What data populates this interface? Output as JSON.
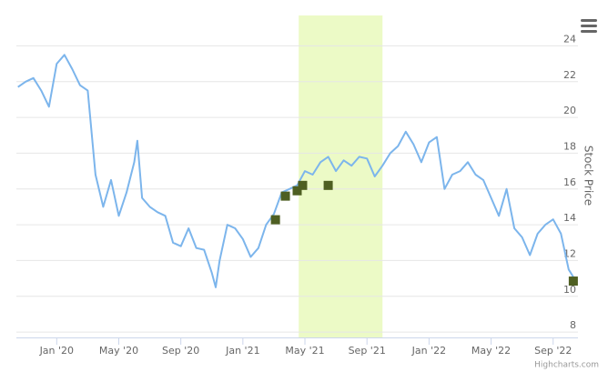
{
  "chart_data": {
    "type": "line",
    "y_axis_label": "Stock Price",
    "credit": "Highcharts.com",
    "xlim": [
      -2.6,
      33.6
    ],
    "xticks": [
      {
        "value": 0,
        "label": "Jan '20"
      },
      {
        "value": 4,
        "label": "May '20"
      },
      {
        "value": 8,
        "label": "Sep '20"
      },
      {
        "value": 12,
        "label": "Jan '21"
      },
      {
        "value": 16,
        "label": "May '21"
      },
      {
        "value": 20,
        "label": "Sep '21"
      },
      {
        "value": 24,
        "label": "Jan '22"
      },
      {
        "value": 28,
        "label": "May '22"
      },
      {
        "value": 32,
        "label": "Sep '22"
      }
    ],
    "ylim": [
      7.7,
      25.7
    ],
    "yticks": [
      8,
      10,
      12,
      14,
      16,
      18,
      20,
      22,
      24
    ],
    "grid": true,
    "band": [
      15.6,
      21.0
    ],
    "band_color": "#ecfac6",
    "series": [
      {
        "color": "#7cb5ec",
        "x": [
          -2.5,
          -2,
          -1.5,
          -1,
          -0.5,
          0,
          0.5,
          1,
          1.5,
          2,
          2.5,
          3,
          3.5,
          4,
          4.5,
          5,
          5.2,
          5.5,
          6,
          6.5,
          7,
          7.5,
          8,
          8.5,
          9,
          9.5,
          10,
          10.25,
          10.5,
          11,
          11.5,
          12,
          12.5,
          13,
          13.5,
          14,
          14.5,
          15,
          15.5,
          16,
          16.5,
          17,
          17.5,
          18,
          18.5,
          19,
          19.5,
          20,
          20.5,
          21,
          21.5,
          22,
          22.5,
          23,
          23.5,
          24,
          24.5,
          25,
          25.5,
          26,
          26.5,
          27,
          27.5,
          28,
          28.5,
          29,
          29.5,
          30,
          30.5,
          31,
          31.5,
          32,
          32.5,
          33,
          33.5
        ],
        "values": [
          21.7,
          22.0,
          22.2,
          21.5,
          20.6,
          23.0,
          23.5,
          22.7,
          21.8,
          21.5,
          16.8,
          15.0,
          16.5,
          14.5,
          15.8,
          17.5,
          18.7,
          15.5,
          15.0,
          14.7,
          14.5,
          13.0,
          12.8,
          13.8,
          12.7,
          12.6,
          11.3,
          10.5,
          12.0,
          14.0,
          13.8,
          13.2,
          12.2,
          12.7,
          14.0,
          14.6,
          15.8,
          16.0,
          16.2,
          17.0,
          16.8,
          17.5,
          17.8,
          17.0,
          17.6,
          17.3,
          17.8,
          17.7,
          16.7,
          17.3,
          18.0,
          18.4,
          19.2,
          18.5,
          17.5,
          18.6,
          18.9,
          16.0,
          16.8,
          17.0,
          17.5,
          16.8,
          16.5,
          15.5,
          14.5,
          16.0,
          13.8,
          13.3,
          12.3,
          13.5,
          14.0,
          14.3,
          13.5,
          11.5,
          10.8
        ]
      },
      {
        "type": "scatter",
        "color": "#4e5f22",
        "x": [
          14.1,
          14.74,
          15.5,
          15.85,
          17.5,
          33.3
        ],
        "values": [
          14.28,
          15.6,
          15.9,
          16.2,
          16.2,
          10.85
        ]
      }
    ]
  }
}
